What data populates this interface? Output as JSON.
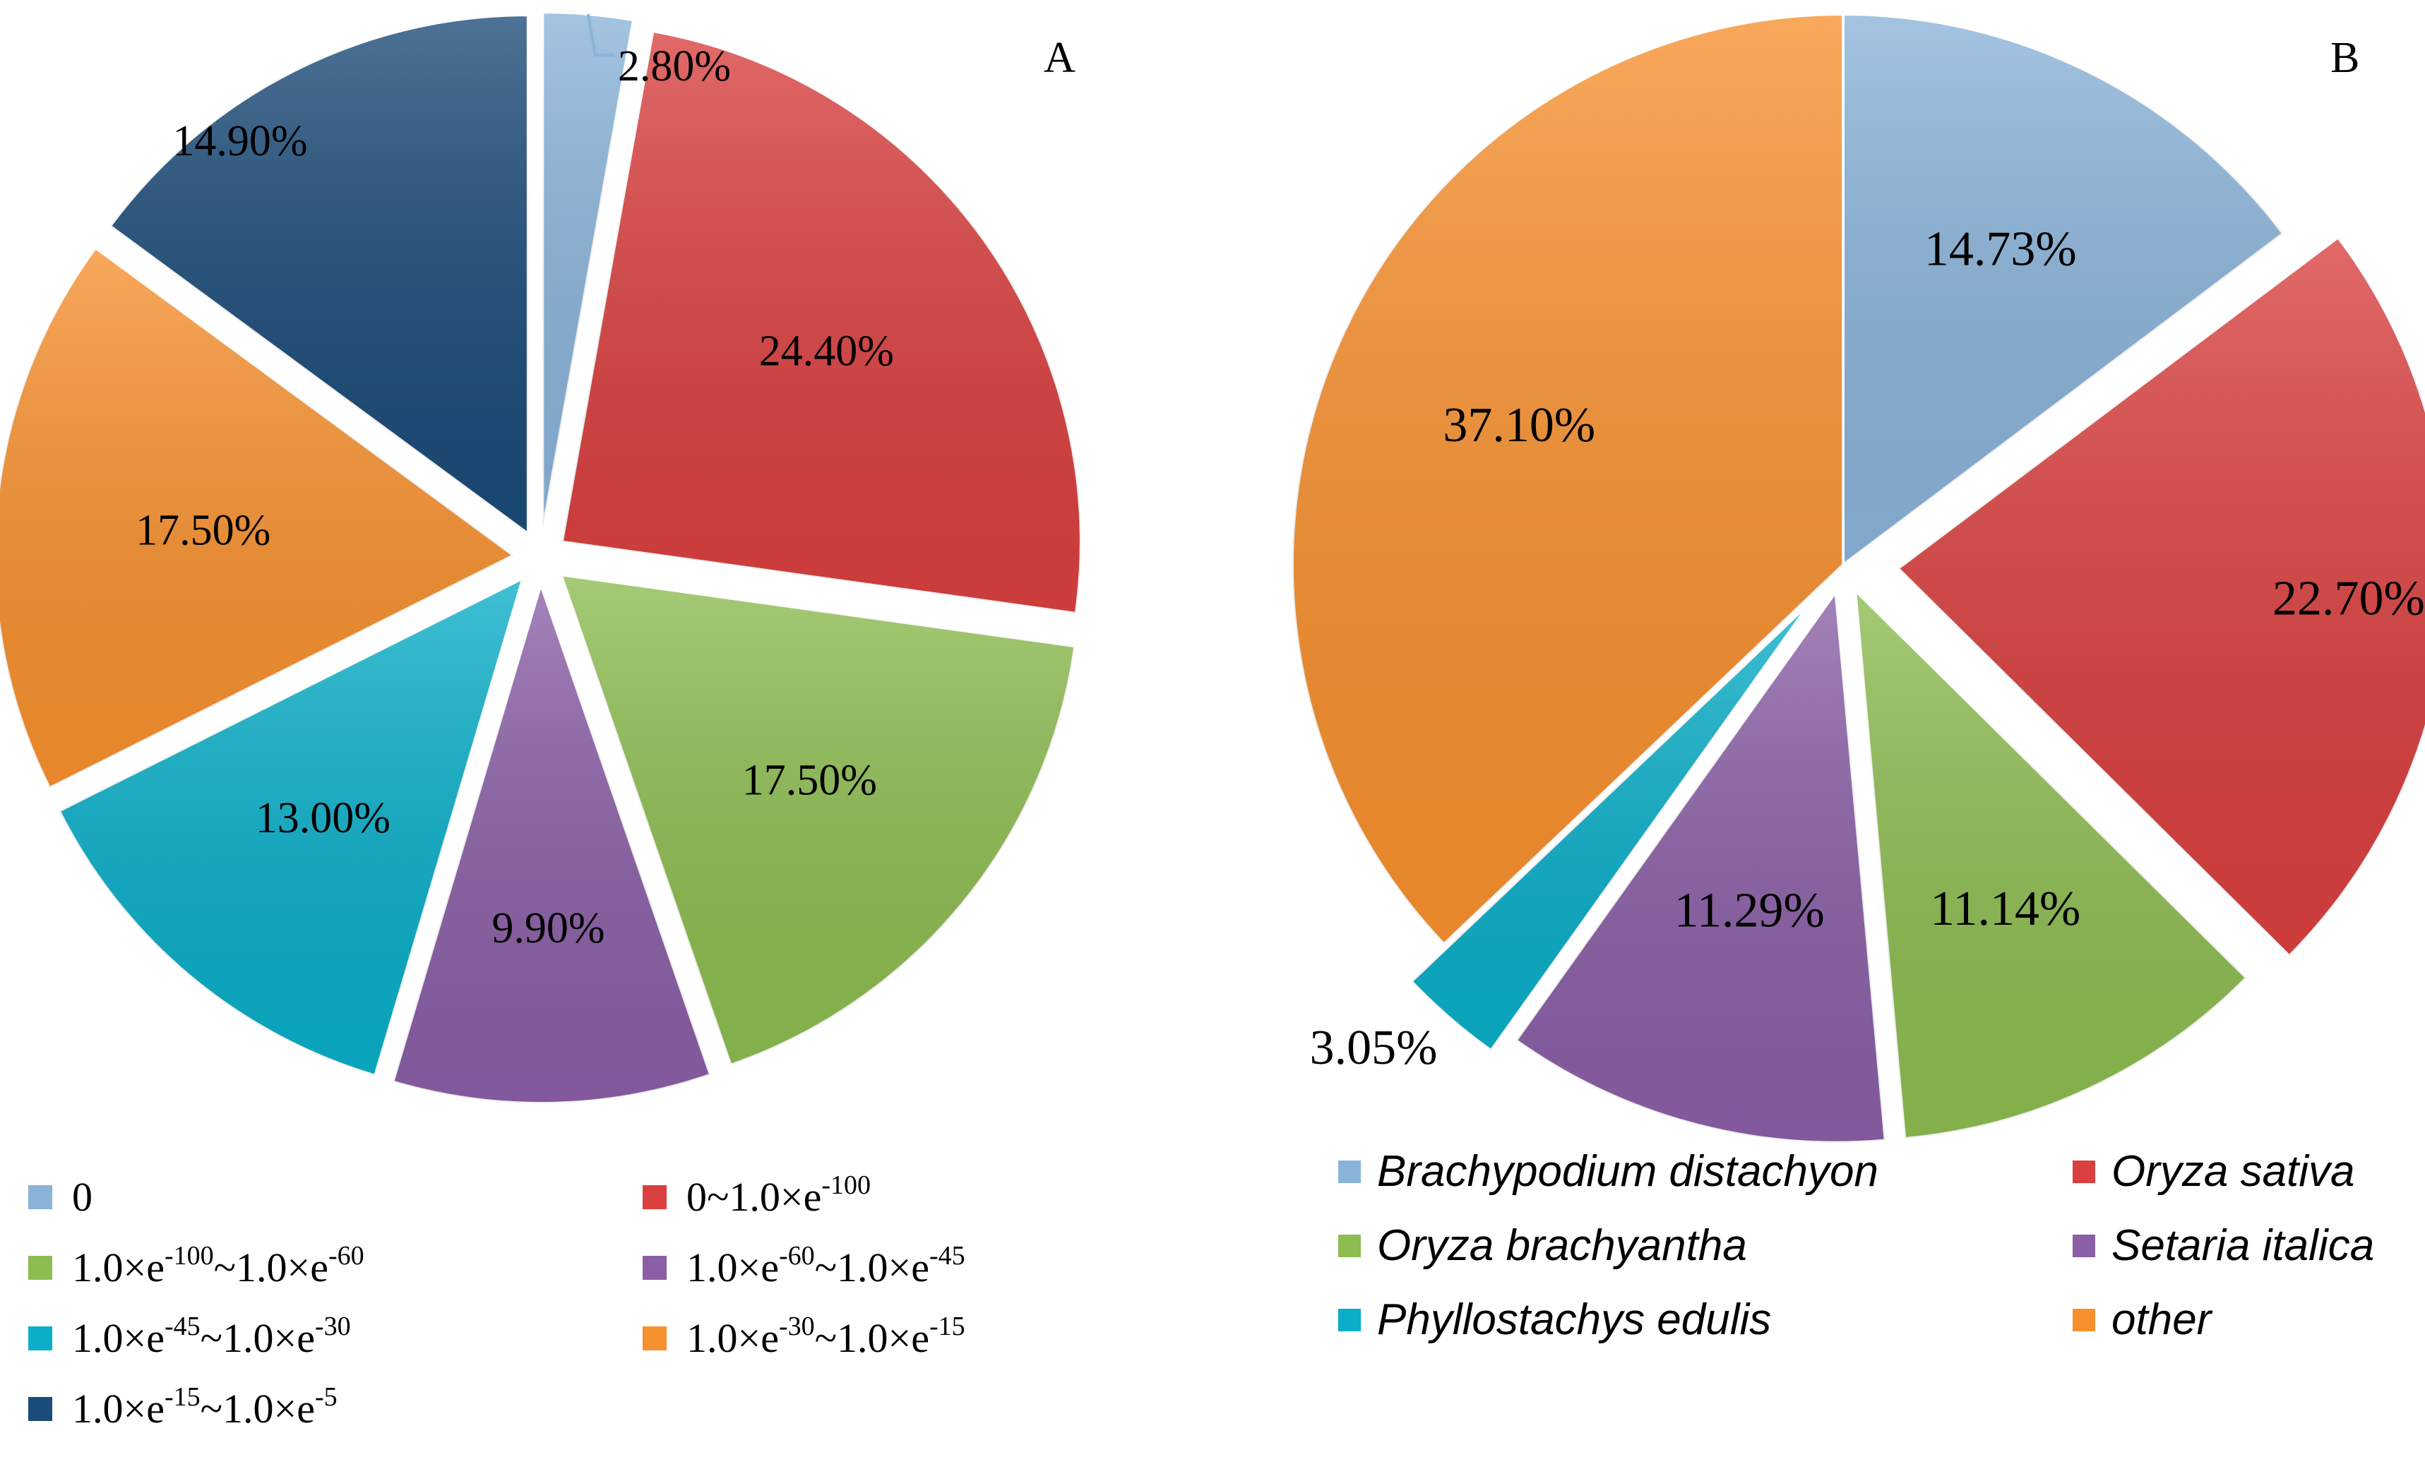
{
  "chart_data": [
    {
      "type": "pie",
      "title": "",
      "panel_label": "A",
      "slices": [
        {
          "label": "0",
          "legend": {
            "base": "0"
          },
          "value": 2.8,
          "value_label": "2.80%",
          "color": "#8ab3d9"
        },
        {
          "label": "0~1.0×e-100",
          "legend": {
            "base": "0~1.0×e",
            "sup": "-100"
          },
          "value": 24.4,
          "value_label": "24.40%",
          "color": "#d9403f"
        },
        {
          "label": "1.0×e-100~1.0×e-60",
          "legend": {
            "base": "1.0×e",
            "sup": "-100",
            "mid": "~1.0×e",
            "sup2": "-60"
          },
          "value": 17.5,
          "value_label": "17.50%",
          "color": "#8dbc50"
        },
        {
          "label": "1.0×e-60~1.0×e-45",
          "legend": {
            "base": "1.0×e",
            "sup": "-60",
            "mid": "~1.0×e",
            "sup2": "-45"
          },
          "value": 9.9,
          "value_label": "9.90%",
          "color": "#8a5fa6"
        },
        {
          "label": "1.0×e-45~1.0×e-30",
          "legend": {
            "base": "1.0×e",
            "sup": "-45",
            "mid": "~1.0×e",
            "sup2": "-30"
          },
          "value": 13.0,
          "value_label": "13.00%",
          "color": "#0aaec8"
        },
        {
          "label": "1.0×e-30~1.0×e-15",
          "legend": {
            "base": "1.0×e",
            "sup": "-30",
            "mid": "~1.0×e",
            "sup2": "-15"
          },
          "value": 17.5,
          "value_label": "17.50%",
          "color": "#f7902e"
        },
        {
          "label": "1.0×e-15~1.0×e-5",
          "legend": {
            "base": "1.0×e",
            "sup": "-15",
            "mid": "~1.0×e",
            "sup2": "-5"
          },
          "value": 14.9,
          "value_label": "14.90%",
          "color": "#1b4b78"
        }
      ],
      "legend_position": "bottom"
    },
    {
      "type": "pie",
      "title": "",
      "panel_label": "B",
      "slices": [
        {
          "label": "Brachypodium distachyon",
          "value": 14.73,
          "value_label": "14.73%",
          "color": "#8ab3d9"
        },
        {
          "label": "Oryza sativa",
          "value": 22.7,
          "value_label": "22.70%",
          "color": "#d9403f"
        },
        {
          "label": "Oryza brachyantha",
          "value": 11.14,
          "value_label": "11.14%",
          "color": "#8dbc50"
        },
        {
          "label": "Setaria italica",
          "value": 11.29,
          "value_label": "11.29%",
          "color": "#8a5fa6"
        },
        {
          "label": "Phyllostachys edulis",
          "value": 3.05,
          "value_label": "3.05%",
          "color": "#0aaec8"
        },
        {
          "label": "other",
          "value": 37.1,
          "value_label": "37.10%",
          "color": "#f7902e"
        }
      ],
      "legend_position": "bottom"
    }
  ]
}
